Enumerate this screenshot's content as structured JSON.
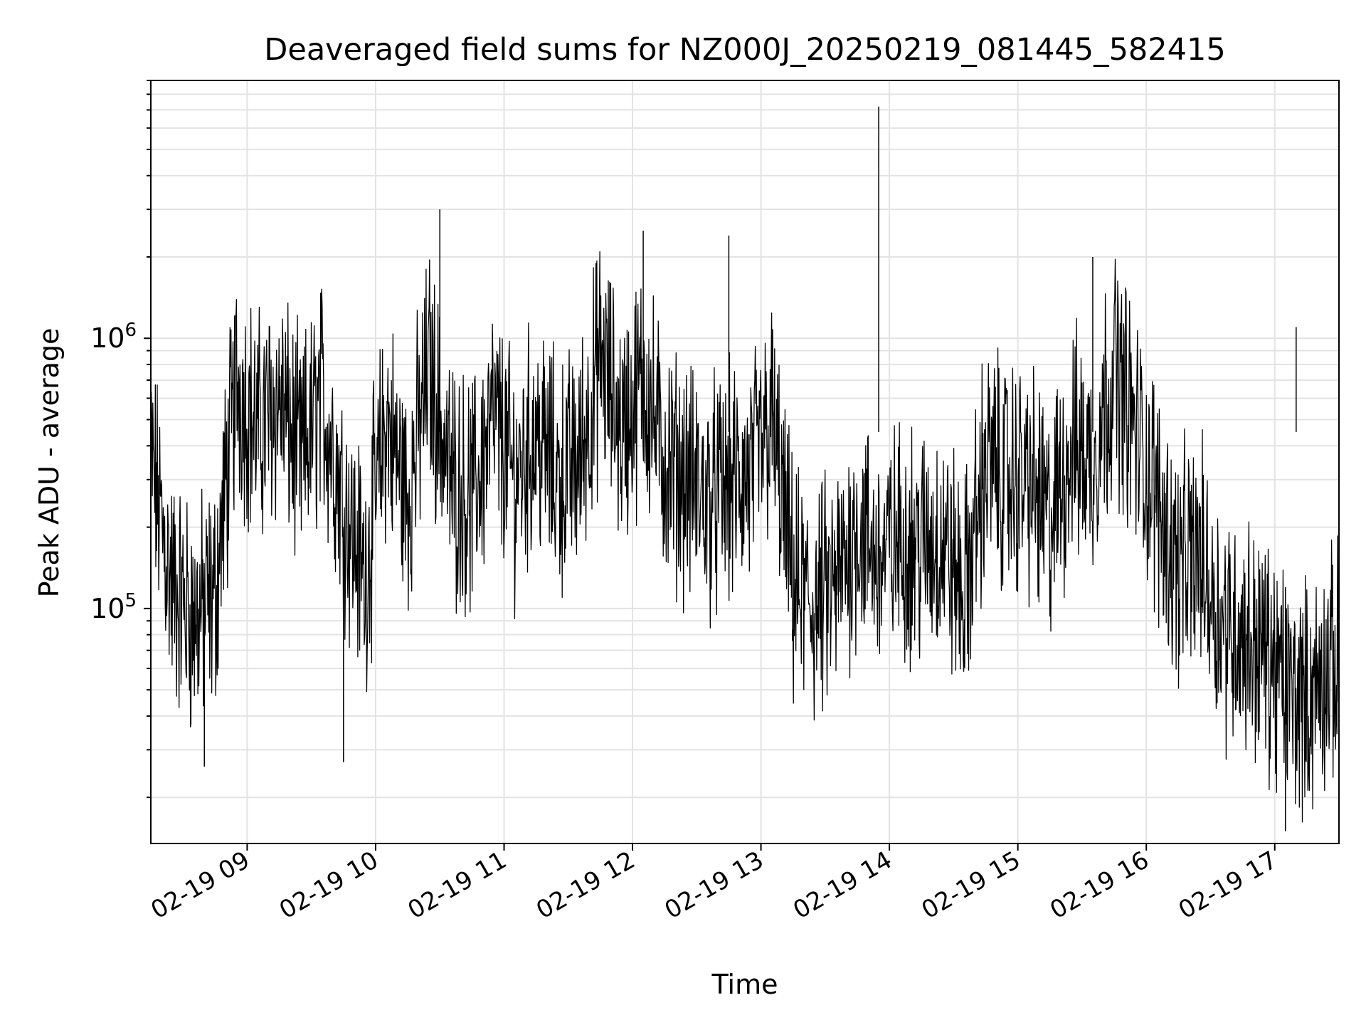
{
  "chart_data": {
    "type": "line",
    "title": "Deaveraged field sums for NZ000J_20250219_081445_582415",
    "xlabel": "Time",
    "ylabel": "Peak ADU - average",
    "x_range": [
      "2025-02-19 08:15",
      "2025-02-19 17:30"
    ],
    "ylim": [
      13500,
      9000000
    ],
    "y_scale": "log",
    "grid": true,
    "line_color": "#000000",
    "x_ticks": [
      "02-19 09",
      "02-19 10",
      "02-19 11",
      "02-19 12",
      "02-19 13",
      "02-19 14",
      "02-19 15",
      "02-19 16",
      "02-19 17"
    ],
    "y_ticks": [
      {
        "value": 100000,
        "base": "10",
        "exp": "5"
      },
      {
        "value": 1000000,
        "base": "10",
        "exp": "6"
      }
    ],
    "series": [
      {
        "x": [
          "2025-02-19 08:15",
          "2025-02-19 08:25",
          "2025-02-19 08:35",
          "2025-02-19 08:45",
          "2025-02-19 08:55",
          "2025-02-19 09:05",
          "2025-02-19 09:15",
          "2025-02-19 09:25",
          "2025-02-19 09:35",
          "2025-02-19 09:45",
          "2025-02-19 09:55",
          "2025-02-19 10:05",
          "2025-02-19 10:15",
          "2025-02-19 10:25",
          "2025-02-19 10:35",
          "2025-02-19 10:45",
          "2025-02-19 10:55",
          "2025-02-19 11:05",
          "2025-02-19 11:15",
          "2025-02-19 11:25",
          "2025-02-19 11:35",
          "2025-02-19 11:45",
          "2025-02-19 11:55",
          "2025-02-19 12:05",
          "2025-02-19 12:15",
          "2025-02-19 12:25",
          "2025-02-19 12:35",
          "2025-02-19 12:45",
          "2025-02-19 12:55",
          "2025-02-19 13:05",
          "2025-02-19 13:15",
          "2025-02-19 13:25",
          "2025-02-19 13:35",
          "2025-02-19 13:45",
          "2025-02-19 13:55",
          "2025-02-19 14:05",
          "2025-02-19 14:15",
          "2025-02-19 14:25",
          "2025-02-19 14:35",
          "2025-02-19 14:45",
          "2025-02-19 14:55",
          "2025-02-19 15:05",
          "2025-02-19 15:15",
          "2025-02-19 15:25",
          "2025-02-19 15:35",
          "2025-02-19 15:45",
          "2025-02-19 15:55",
          "2025-02-19 16:05",
          "2025-02-19 16:15",
          "2025-02-19 16:25",
          "2025-02-19 16:35",
          "2025-02-19 16:45",
          "2025-02-19 16:55",
          "2025-02-19 17:05",
          "2025-02-19 17:15",
          "2025-02-19 17:25"
        ],
        "values": [
          350000,
          120000,
          90000,
          110000,
          700000,
          450000,
          600000,
          350000,
          600000,
          250000,
          130000,
          500000,
          250000,
          800000,
          300000,
          250000,
          500000,
          300000,
          450000,
          300000,
          350000,
          850000,
          450000,
          700000,
          350000,
          300000,
          250000,
          280000,
          300000,
          500000,
          120000,
          100000,
          120000,
          200000,
          150000,
          180000,
          170000,
          180000,
          110000,
          350000,
          300000,
          300000,
          200000,
          400000,
          350000,
          800000,
          450000,
          250000,
          140000,
          160000,
          90000,
          80000,
          70000,
          50000,
          45000,
          60000
        ]
      }
    ],
    "spikes": [
      {
        "x": "2025-02-19 10:30",
        "y": 3000000
      },
      {
        "x": "2025-02-19 12:05",
        "y": 2500000
      },
      {
        "x": "2025-02-19 12:45",
        "y": 2400000
      },
      {
        "x": "2025-02-19 13:55",
        "y": 7200000
      },
      {
        "x": "2025-02-19 15:35",
        "y": 2000000
      },
      {
        "x": "2025-02-19 09:45",
        "y": 27000
      },
      {
        "x": "2025-02-19 08:40",
        "y": 26000
      },
      {
        "x": "2025-02-19 17:05",
        "y": 15000
      },
      {
        "x": "2025-02-19 17:10",
        "y": 1100000
      }
    ]
  }
}
